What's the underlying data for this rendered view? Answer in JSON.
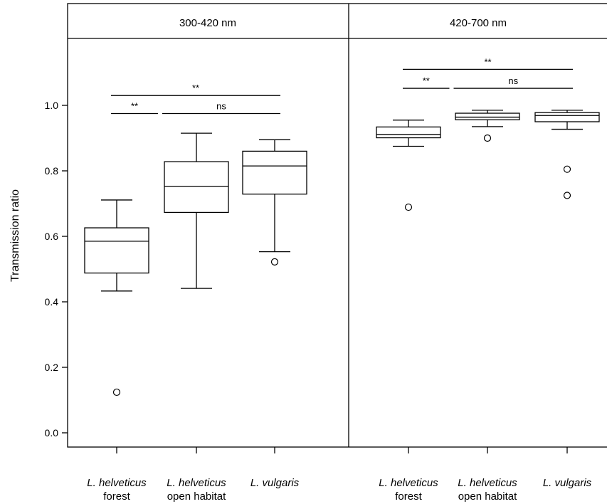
{
  "chart_data": {
    "type": "boxplot",
    "ylabel": "Transmission ratio",
    "ylim": [
      -0.04,
      1.22
    ],
    "yticks": [
      "0.0",
      "0.2",
      "0.4",
      "0.6",
      "0.8",
      "1.0"
    ],
    "category_labels": [
      {
        "species": "L. helveticus",
        "habitat": "forest"
      },
      {
        "species": "L. helveticus",
        "habitat": "open habitat"
      },
      {
        "species": "L. vulgaris",
        "habitat": ""
      }
    ],
    "panels": [
      {
        "title": "300-420 nm",
        "boxes": [
          {
            "lower_whisker": 0.433,
            "q1": 0.488,
            "median": 0.585,
            "q3": 0.626,
            "upper_whisker": 0.711,
            "outliers": [
              0.124
            ]
          },
          {
            "lower_whisker": 0.441,
            "q1": 0.673,
            "median": 0.753,
            "q3": 0.828,
            "upper_whisker": 0.915,
            "outliers": []
          },
          {
            "lower_whisker": 0.553,
            "q1": 0.729,
            "median": 0.815,
            "q3": 0.86,
            "upper_whisker": 0.895,
            "outliers": [
              0.522
            ]
          }
        ],
        "significance": [
          {
            "from": 0,
            "to": 1,
            "label": "**",
            "y": 0.975
          },
          {
            "from": 1,
            "to": 2,
            "label": "ns",
            "y": 0.975
          },
          {
            "from": 0,
            "to": 2,
            "label": "**",
            "y": 1.03
          }
        ]
      },
      {
        "title": "420-700 nm",
        "boxes": [
          {
            "lower_whisker": 0.875,
            "q1": 0.901,
            "median": 0.911,
            "q3": 0.934,
            "upper_whisker": 0.955,
            "outliers": [
              0.689
            ]
          },
          {
            "lower_whisker": 0.935,
            "q1": 0.956,
            "median": 0.964,
            "q3": 0.976,
            "upper_whisker": 0.985,
            "outliers": [
              0.9
            ]
          },
          {
            "lower_whisker": 0.927,
            "q1": 0.95,
            "median": 0.969,
            "q3": 0.978,
            "upper_whisker": 0.985,
            "outliers": [
              0.805,
              0.725
            ]
          }
        ],
        "significance": [
          {
            "from": 0,
            "to": 1,
            "label": "**",
            "y": 1.052
          },
          {
            "from": 1,
            "to": 2,
            "label": "ns",
            "y": 1.052
          },
          {
            "from": 0,
            "to": 2,
            "label": "**",
            "y": 1.11
          }
        ]
      }
    ]
  }
}
